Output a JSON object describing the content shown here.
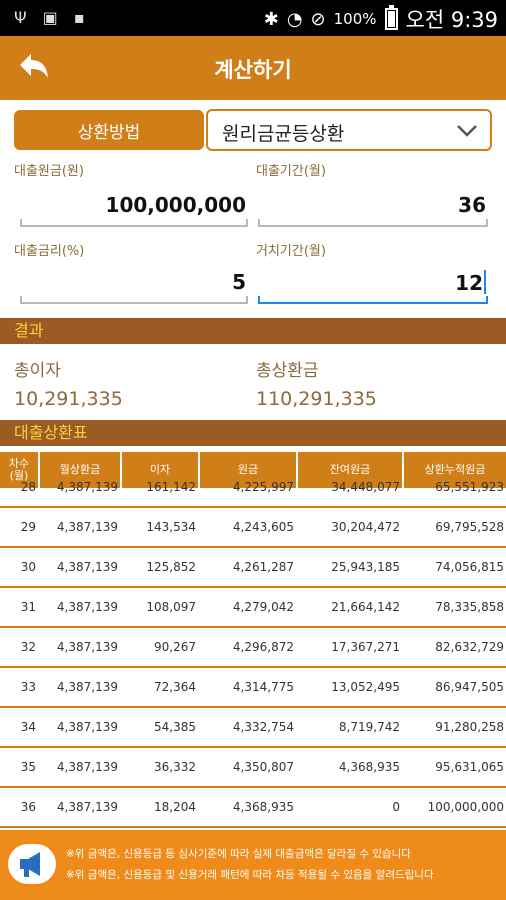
{
  "status_bar": {
    "battery": "100%",
    "time": "오전 9:39",
    "icons": [
      "usb-icon",
      "sim-off-icon",
      "sd-card-icon",
      "bluetooth-icon",
      "wifi-icon",
      "do-not-disturb-icon",
      "battery-icon"
    ]
  },
  "appbar": {
    "title": "계산하기",
    "back_icon": "back-arrow-icon"
  },
  "method": {
    "label": "상환방법",
    "selected": "원리금균등상환"
  },
  "inputs": {
    "principal": {
      "label": "대출원금(원)",
      "value": "100,000,000"
    },
    "period": {
      "label": "대출기간(월)",
      "value": "36"
    },
    "rate": {
      "label": "대출금리(%)",
      "value": "5"
    },
    "grace": {
      "label": "거치기간(월)",
      "value": "12"
    }
  },
  "result": {
    "header": "결과",
    "total_interest_label": "총이자",
    "total_interest": "10,291,335",
    "total_repay_label": "총상환금",
    "total_repay": "110,291,335"
  },
  "schedule": {
    "header": "대출상환표",
    "columns": [
      "차수\n(월)",
      "월상환금",
      "이자",
      "원금",
      "잔여원금",
      "상환누적원금"
    ],
    "rows": [
      [
        "28",
        "4,387,139",
        "161,142",
        "4,225,997",
        "34,448,077",
        "65,551,923"
      ],
      [
        "29",
        "4,387,139",
        "143,534",
        "4,243,605",
        "30,204,472",
        "69,795,528"
      ],
      [
        "30",
        "4,387,139",
        "125,852",
        "4,261,287",
        "25,943,185",
        "74,056,815"
      ],
      [
        "31",
        "4,387,139",
        "108,097",
        "4,279,042",
        "21,664,142",
        "78,335,858"
      ],
      [
        "32",
        "4,387,139",
        "90,267",
        "4,296,872",
        "17,367,271",
        "82,632,729"
      ],
      [
        "33",
        "4,387,139",
        "72,364",
        "4,314,775",
        "13,052,495",
        "86,947,505"
      ],
      [
        "34",
        "4,387,139",
        "54,385",
        "4,332,754",
        "8,719,742",
        "91,280,258"
      ],
      [
        "35",
        "4,387,139",
        "36,332",
        "4,350,807",
        "4,368,935",
        "95,631,065"
      ],
      [
        "36",
        "4,387,139",
        "18,204",
        "4,368,935",
        "0",
        "100,000,000"
      ]
    ]
  },
  "footer": {
    "icon": "megaphone-icon",
    "note1": "※위 금액은, 신용등급 등 심사기준에 따라 실제 대출금액은 달라질 수 있습니다",
    "note2": "※위 금액은, 신용등급 및 신용거래 패턴에 따라 차등 적용될 수 있음을 알려드립니다"
  },
  "colors": {
    "accent": "#cf7e18",
    "section": "#9b5b25",
    "section_text": "#ffcf3b",
    "label": "#8b6a3b",
    "focus": "#1e88e5",
    "footer": "#ee8b1a"
  }
}
